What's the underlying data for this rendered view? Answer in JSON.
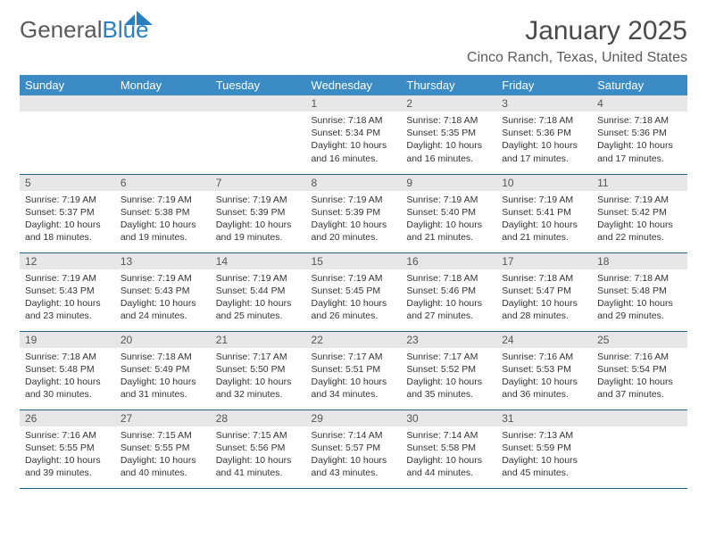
{
  "logo": {
    "word1": "General",
    "word2": "Blue"
  },
  "title": "January 2025",
  "location": "Cinco Ranch, Texas, United States",
  "colors": {
    "header_bg": "#3b8bc4",
    "header_text": "#ffffff",
    "daynum_bg": "#e7e7e7",
    "border": "#1f5f8a",
    "logo_gray": "#5a5a5a",
    "logo_blue": "#2a7fbf"
  },
  "day_headers": [
    "Sunday",
    "Monday",
    "Tuesday",
    "Wednesday",
    "Thursday",
    "Friday",
    "Saturday"
  ],
  "weeks": [
    [
      null,
      null,
      null,
      {
        "n": "1",
        "sr": "7:18 AM",
        "ss": "5:34 PM",
        "dl": "10 hours and 16 minutes."
      },
      {
        "n": "2",
        "sr": "7:18 AM",
        "ss": "5:35 PM",
        "dl": "10 hours and 16 minutes."
      },
      {
        "n": "3",
        "sr": "7:18 AM",
        "ss": "5:36 PM",
        "dl": "10 hours and 17 minutes."
      },
      {
        "n": "4",
        "sr": "7:18 AM",
        "ss": "5:36 PM",
        "dl": "10 hours and 17 minutes."
      }
    ],
    [
      {
        "n": "5",
        "sr": "7:19 AM",
        "ss": "5:37 PM",
        "dl": "10 hours and 18 minutes."
      },
      {
        "n": "6",
        "sr": "7:19 AM",
        "ss": "5:38 PM",
        "dl": "10 hours and 19 minutes."
      },
      {
        "n": "7",
        "sr": "7:19 AM",
        "ss": "5:39 PM",
        "dl": "10 hours and 19 minutes."
      },
      {
        "n": "8",
        "sr": "7:19 AM",
        "ss": "5:39 PM",
        "dl": "10 hours and 20 minutes."
      },
      {
        "n": "9",
        "sr": "7:19 AM",
        "ss": "5:40 PM",
        "dl": "10 hours and 21 minutes."
      },
      {
        "n": "10",
        "sr": "7:19 AM",
        "ss": "5:41 PM",
        "dl": "10 hours and 21 minutes."
      },
      {
        "n": "11",
        "sr": "7:19 AM",
        "ss": "5:42 PM",
        "dl": "10 hours and 22 minutes."
      }
    ],
    [
      {
        "n": "12",
        "sr": "7:19 AM",
        "ss": "5:43 PM",
        "dl": "10 hours and 23 minutes."
      },
      {
        "n": "13",
        "sr": "7:19 AM",
        "ss": "5:43 PM",
        "dl": "10 hours and 24 minutes."
      },
      {
        "n": "14",
        "sr": "7:19 AM",
        "ss": "5:44 PM",
        "dl": "10 hours and 25 minutes."
      },
      {
        "n": "15",
        "sr": "7:19 AM",
        "ss": "5:45 PM",
        "dl": "10 hours and 26 minutes."
      },
      {
        "n": "16",
        "sr": "7:18 AM",
        "ss": "5:46 PM",
        "dl": "10 hours and 27 minutes."
      },
      {
        "n": "17",
        "sr": "7:18 AM",
        "ss": "5:47 PM",
        "dl": "10 hours and 28 minutes."
      },
      {
        "n": "18",
        "sr": "7:18 AM",
        "ss": "5:48 PM",
        "dl": "10 hours and 29 minutes."
      }
    ],
    [
      {
        "n": "19",
        "sr": "7:18 AM",
        "ss": "5:48 PM",
        "dl": "10 hours and 30 minutes."
      },
      {
        "n": "20",
        "sr": "7:18 AM",
        "ss": "5:49 PM",
        "dl": "10 hours and 31 minutes."
      },
      {
        "n": "21",
        "sr": "7:17 AM",
        "ss": "5:50 PM",
        "dl": "10 hours and 32 minutes."
      },
      {
        "n": "22",
        "sr": "7:17 AM",
        "ss": "5:51 PM",
        "dl": "10 hours and 34 minutes."
      },
      {
        "n": "23",
        "sr": "7:17 AM",
        "ss": "5:52 PM",
        "dl": "10 hours and 35 minutes."
      },
      {
        "n": "24",
        "sr": "7:16 AM",
        "ss": "5:53 PM",
        "dl": "10 hours and 36 minutes."
      },
      {
        "n": "25",
        "sr": "7:16 AM",
        "ss": "5:54 PM",
        "dl": "10 hours and 37 minutes."
      }
    ],
    [
      {
        "n": "26",
        "sr": "7:16 AM",
        "ss": "5:55 PM",
        "dl": "10 hours and 39 minutes."
      },
      {
        "n": "27",
        "sr": "7:15 AM",
        "ss": "5:55 PM",
        "dl": "10 hours and 40 minutes."
      },
      {
        "n": "28",
        "sr": "7:15 AM",
        "ss": "5:56 PM",
        "dl": "10 hours and 41 minutes."
      },
      {
        "n": "29",
        "sr": "7:14 AM",
        "ss": "5:57 PM",
        "dl": "10 hours and 43 minutes."
      },
      {
        "n": "30",
        "sr": "7:14 AM",
        "ss": "5:58 PM",
        "dl": "10 hours and 44 minutes."
      },
      {
        "n": "31",
        "sr": "7:13 AM",
        "ss": "5:59 PM",
        "dl": "10 hours and 45 minutes."
      },
      null
    ]
  ],
  "labels": {
    "sunrise": "Sunrise:",
    "sunset": "Sunset:",
    "daylight": "Daylight:"
  }
}
